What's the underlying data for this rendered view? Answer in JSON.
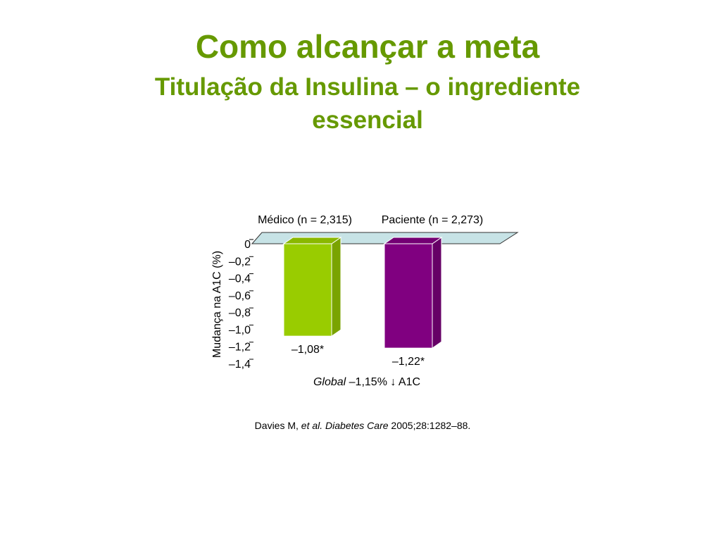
{
  "chart_data": {
    "type": "bar",
    "title": "Como alcançar a meta",
    "subtitle": "Titulação da Insulina – o ingrediente essencial",
    "y_label": "Mudança na A1C (%)",
    "categories": [
      "Médico (n = 2,315)",
      "Paciente (n = 2,273)"
    ],
    "values": [
      -1.08,
      -1.22
    ],
    "value_labels": [
      "–1,08*",
      "–1,22*"
    ],
    "colors": [
      "#99cc00",
      "#800080"
    ],
    "ylim": [
      -1.4,
      0
    ],
    "yticks": [
      {
        "value": 0,
        "label": "0"
      },
      {
        "value": -0.2,
        "label": "–0,2"
      },
      {
        "value": -0.4,
        "label": "–0,4"
      },
      {
        "value": -0.6,
        "label": "–0,6"
      },
      {
        "value": -0.8,
        "label": "–0,8"
      },
      {
        "value": -1.0,
        "label": "–1,0"
      },
      {
        "value": -1.2,
        "label": "–1,2"
      },
      {
        "value": -1.4,
        "label": "–1,4"
      }
    ],
    "annotation": [
      "Global",
      " –1,15% ↓ A1C"
    ],
    "source": [
      "Davies M, ",
      "et al. Diabetes Care",
      " 2005;28:1282–88."
    ]
  }
}
